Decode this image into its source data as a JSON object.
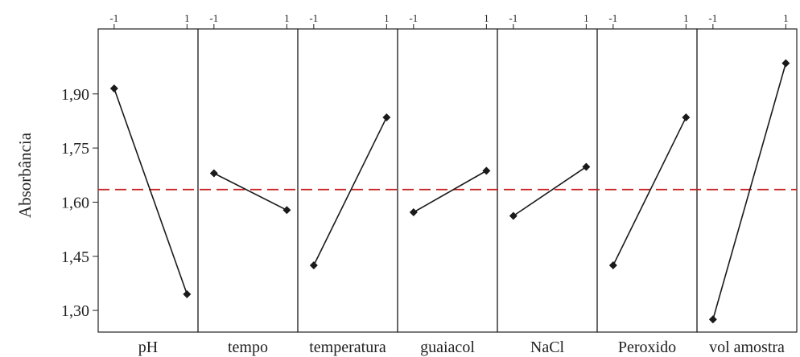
{
  "chart_data": {
    "type": "line",
    "title": "",
    "ylabel": "Absorbância",
    "ylim": [
      1.24,
      2.08
    ],
    "yticks": [
      "1,30",
      "1,45",
      "1,60",
      "1,75",
      "1,90"
    ],
    "ytick_values": [
      1.3,
      1.45,
      1.6,
      1.75,
      1.9
    ],
    "level_labels": [
      "-1",
      "1"
    ],
    "reference_line": {
      "value": 1.635,
      "style": "dashed",
      "color": "#c81e1e"
    },
    "series": [
      {
        "name": "pH",
        "values": [
          1.915,
          1.345
        ]
      },
      {
        "name": "tempo",
        "values": [
          1.68,
          1.578
        ]
      },
      {
        "name": "temperatura",
        "values": [
          1.425,
          1.835
        ]
      },
      {
        "name": "guaiacol",
        "values": [
          1.572,
          1.687
        ]
      },
      {
        "name": "NaCl",
        "values": [
          1.562,
          1.698
        ]
      },
      {
        "name": "Peroxido",
        "values": [
          1.425,
          1.835
        ]
      },
      {
        "name": "vol amostra",
        "values": [
          1.275,
          1.985
        ]
      }
    ],
    "grid": false,
    "colors": {
      "line": "#1a1a1a",
      "marker": "#1a1a1a",
      "reference": "#c81e1e"
    }
  }
}
